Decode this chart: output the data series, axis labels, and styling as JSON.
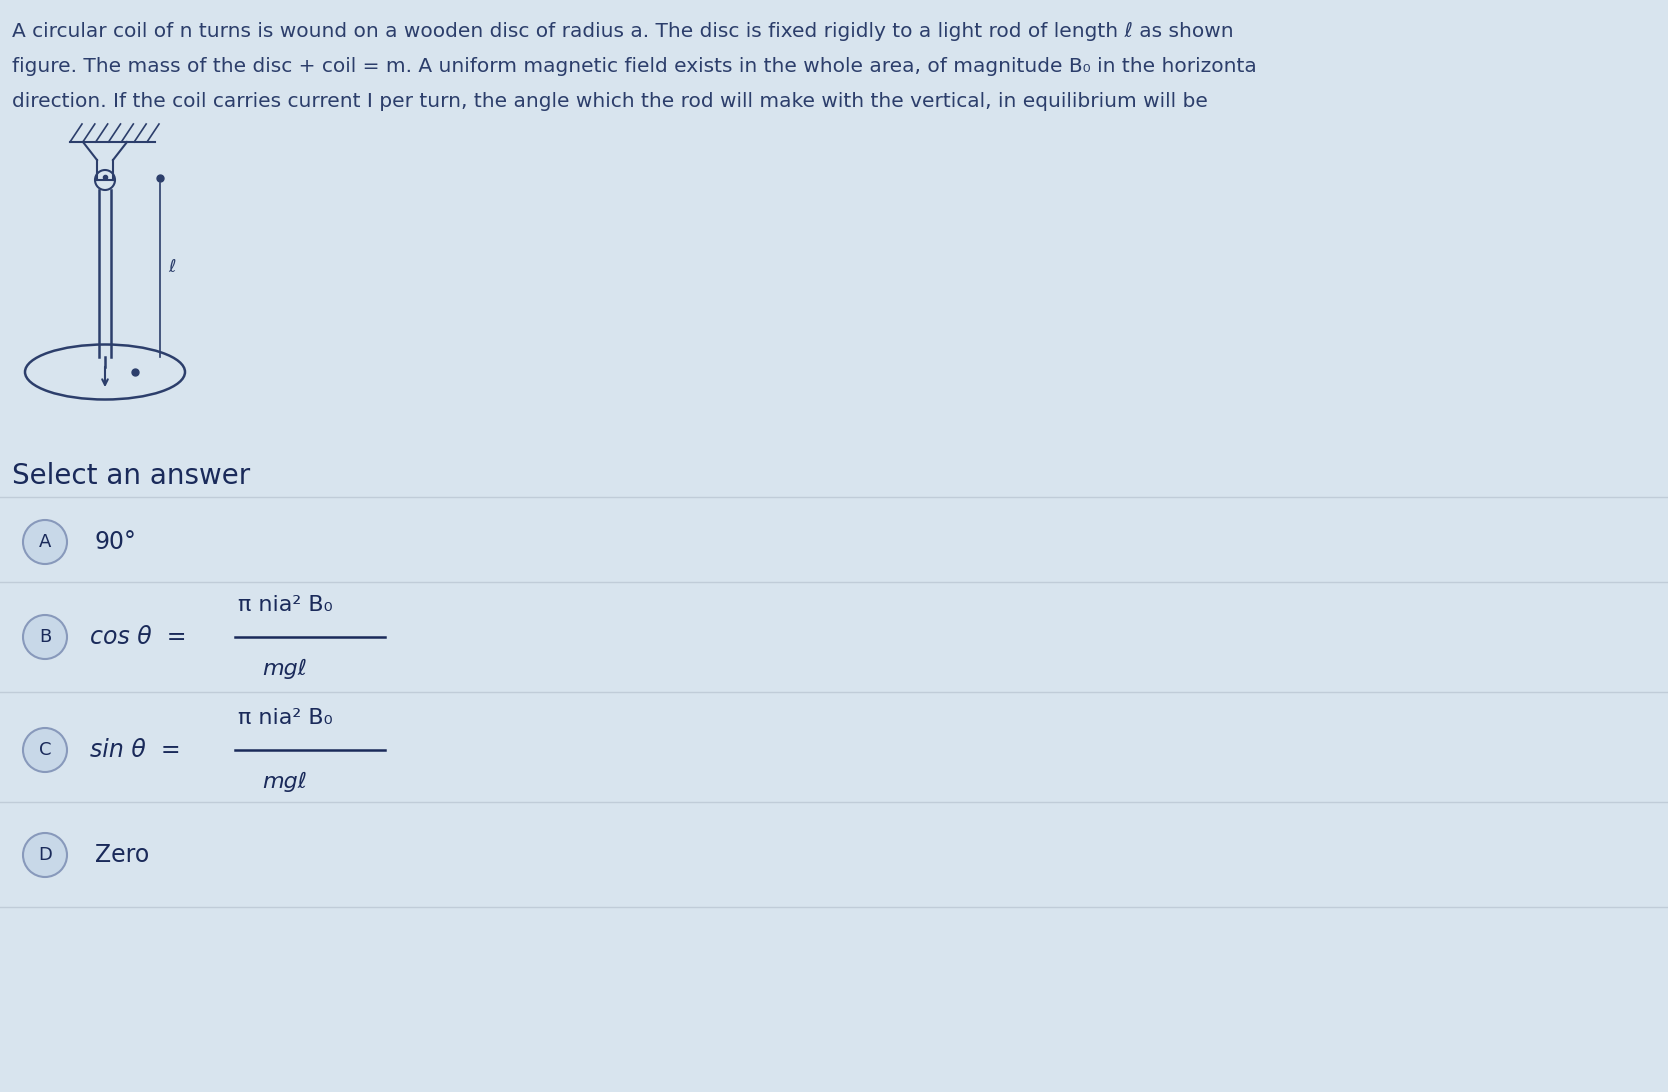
{
  "background_color": "#d8e4ee",
  "text_color": "#2c3e6b",
  "question_line1": "A circular coil of n turns is wound on a wooden disc of radius a. The disc is fixed rigidly to a light rod of length ℓ as shown",
  "question_line2": "figure. The mass of the disc + coil = m. A uniform magnetic field exists in the whole area, of magnitude B₀ in the horizonta",
  "question_line3": "direction. If the coil carries current I per turn, the angle which the rod will make with the vertical, in equilibrium will be",
  "select_label": "Select an answer",
  "options": [
    {
      "label": "A",
      "text": "90°",
      "math": false
    },
    {
      "label": "B",
      "prefix": "cos θ  =",
      "numerator": "π nia² B₀",
      "denominator": "mgℓ",
      "math": true
    },
    {
      "label": "C",
      "prefix": "sin θ  =",
      "numerator": "π nia² B₀",
      "denominator": "mgℓ",
      "math": true
    },
    {
      "label": "D",
      "text": "Zero",
      "math": false
    }
  ],
  "divider_color": "#c0ccd8",
  "label_circle_facecolor": "#c8d8e8",
  "label_circle_edgecolor": "#8899bb",
  "option_text_color": "#1a2a5a",
  "select_text_color": "#1a2a5a"
}
